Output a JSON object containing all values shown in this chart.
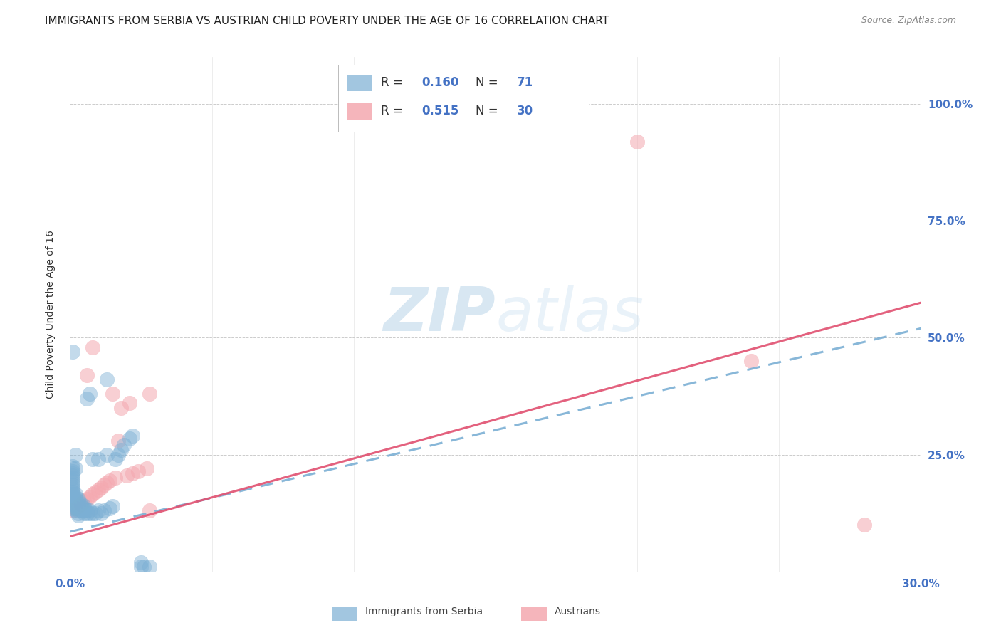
{
  "title": "IMMIGRANTS FROM SERBIA VS AUSTRIAN CHILD POVERTY UNDER THE AGE OF 16 CORRELATION CHART",
  "source": "Source: ZipAtlas.com",
  "ylabel_label": "Child Poverty Under the Age of 16",
  "xlim": [
    0.0,
    0.3
  ],
  "ylim": [
    0.0,
    1.1
  ],
  "serbia_color": "#7bafd4",
  "austria_color": "#f4a8b0",
  "serbia_R": 0.16,
  "serbia_N": 71,
  "austria_R": 0.515,
  "austria_N": 30,
  "legend_label_1": "Immigrants from Serbia",
  "legend_label_2": "Austrians",
  "background_color": "#ffffff",
  "grid_color": "#cccccc",
  "blue_text": "#4472c4",
  "title_fontsize": 11,
  "tick_fontsize": 11,
  "serbia_x": [
    0.001,
    0.001,
    0.001,
    0.001,
    0.001,
    0.001,
    0.001,
    0.001,
    0.001,
    0.001,
    0.001,
    0.001,
    0.001,
    0.001,
    0.001,
    0.001,
    0.001,
    0.001,
    0.002,
    0.002,
    0.002,
    0.002,
    0.002,
    0.002,
    0.002,
    0.002,
    0.002,
    0.002,
    0.003,
    0.003,
    0.003,
    0.003,
    0.003,
    0.003,
    0.003,
    0.003,
    0.004,
    0.004,
    0.004,
    0.004,
    0.005,
    0.005,
    0.005,
    0.005,
    0.006,
    0.006,
    0.006,
    0.007,
    0.007,
    0.007,
    0.008,
    0.008,
    0.009,
    0.01,
    0.01,
    0.011,
    0.012,
    0.013,
    0.013,
    0.014,
    0.015,
    0.016,
    0.017,
    0.018,
    0.019,
    0.021,
    0.022,
    0.025,
    0.025,
    0.026,
    0.028
  ],
  "serbia_y": [
    0.135,
    0.145,
    0.155,
    0.16,
    0.165,
    0.17,
    0.175,
    0.18,
    0.185,
    0.19,
    0.195,
    0.2,
    0.205,
    0.21,
    0.215,
    0.22,
    0.225,
    0.47,
    0.13,
    0.135,
    0.14,
    0.145,
    0.15,
    0.155,
    0.16,
    0.165,
    0.22,
    0.25,
    0.12,
    0.125,
    0.13,
    0.135,
    0.14,
    0.145,
    0.15,
    0.155,
    0.13,
    0.135,
    0.14,
    0.145,
    0.125,
    0.13,
    0.135,
    0.14,
    0.125,
    0.13,
    0.37,
    0.125,
    0.13,
    0.38,
    0.125,
    0.24,
    0.125,
    0.13,
    0.24,
    0.125,
    0.13,
    0.25,
    0.41,
    0.135,
    0.14,
    0.24,
    0.25,
    0.26,
    0.27,
    0.285,
    0.29,
    0.01,
    0.02,
    0.01,
    0.01
  ],
  "austria_x": [
    0.001,
    0.002,
    0.003,
    0.004,
    0.005,
    0.006,
    0.006,
    0.007,
    0.008,
    0.008,
    0.009,
    0.01,
    0.011,
    0.012,
    0.013,
    0.014,
    0.015,
    0.016,
    0.017,
    0.018,
    0.02,
    0.021,
    0.022,
    0.024,
    0.027,
    0.028,
    0.028,
    0.2,
    0.28,
    0.24
  ],
  "austria_y": [
    0.13,
    0.135,
    0.14,
    0.145,
    0.15,
    0.155,
    0.42,
    0.16,
    0.165,
    0.48,
    0.17,
    0.175,
    0.18,
    0.185,
    0.19,
    0.195,
    0.38,
    0.2,
    0.28,
    0.35,
    0.205,
    0.36,
    0.21,
    0.215,
    0.22,
    0.13,
    0.38,
    0.92,
    0.1,
    0.45
  ]
}
